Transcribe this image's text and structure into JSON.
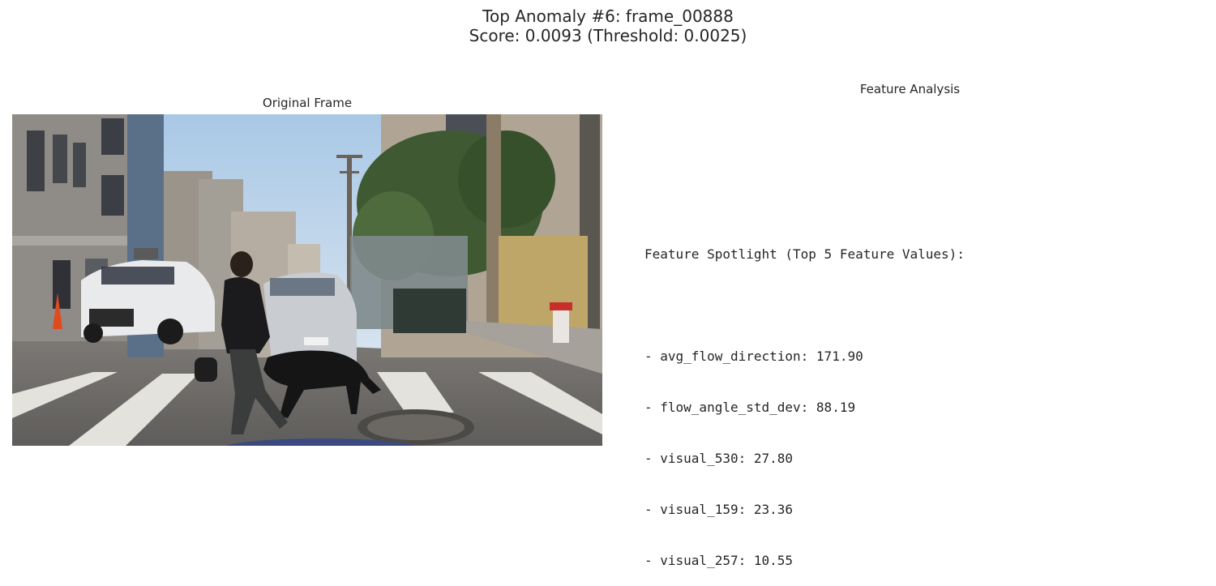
{
  "figure": {
    "title_line1": "Top Anomaly #6: frame_00888",
    "title_line2": "Score: 0.0093 (Threshold: 0.0025)"
  },
  "left_panel": {
    "title": "Original Frame",
    "image_description_icon": "street-scene-photo"
  },
  "right_panel": {
    "title": "Feature Analysis",
    "heading": "Feature Spotlight (Top 5 Feature Values):",
    "features": [
      "- avg_flow_direction: 171.90",
      "- flow_angle_std_dev: 88.19",
      "- visual_530: 27.80",
      "- visual_159: 23.36",
      "- visual_257: 10.55"
    ]
  },
  "colors": {
    "text": "#262626",
    "background": "#ffffff"
  }
}
